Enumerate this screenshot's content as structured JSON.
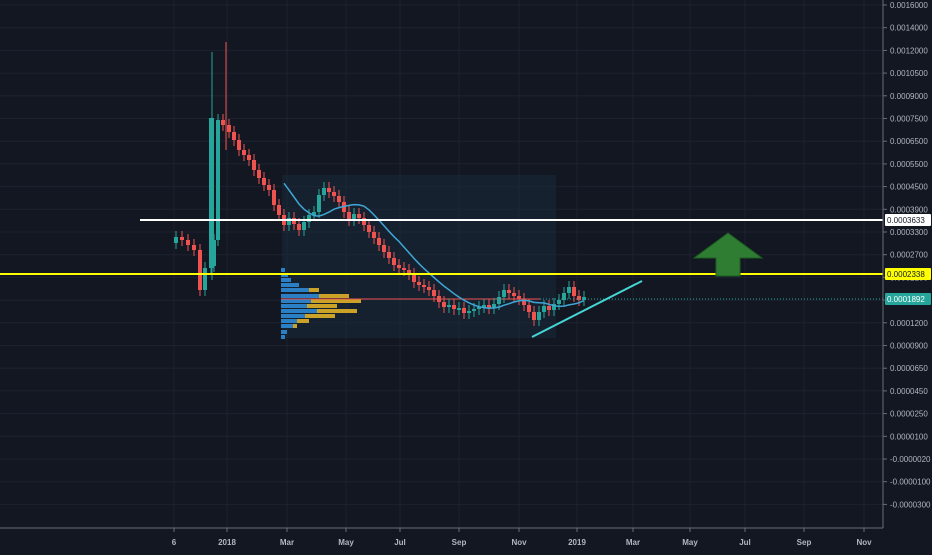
{
  "colors": {
    "background": "#131722",
    "grid": "#1e2230",
    "axis_text": "#b2b5be",
    "axis_line": "#6a6d78",
    "up": "#26a69a",
    "down": "#ef5350",
    "ma": "#3fa7d6",
    "white_line": "#ffffff",
    "yellow_line": "#ffff00",
    "trendline": "#45d6d6",
    "arrow": "#2e7d32",
    "vp_blue": "#2b7fc4",
    "vp_gold": "#c9a227",
    "vp_box": "#1a2a3a"
  },
  "chart_data": {
    "type": "candlestick",
    "title": "",
    "x_tick_labels": [
      "6",
      "2018",
      "Mar",
      "May",
      "Jul",
      "Sep",
      "Nov",
      "2019",
      "Mar",
      "May",
      "Jul",
      "Sep",
      "Nov"
    ],
    "y_tick_labels": [
      "0.0016000",
      "0.0014000",
      "0.0012000",
      "0.0010500",
      "0.0009000",
      "0.0007500",
      "0.0006500",
      "0.0005500",
      "0.0004500",
      "0.0003900",
      "0.0003300",
      "0.0002700",
      "0.0002100",
      "0.0001500",
      "0.0001200",
      "0.0000900",
      "0.0000650",
      "0.0000450",
      "0.0000250",
      "0.0000100",
      "-0.0000020",
      "-0.0000100",
      "-0.0000300"
    ],
    "price_labels": {
      "white_line": "0.0003633",
      "yellow_line": "0.0002338",
      "last_price": "0.0001892"
    },
    "annotations": [
      "white-horizontal-line",
      "yellow-horizontal-line",
      "ascending-trendline",
      "green-up-arrow",
      "volume-profile",
      "moving-average"
    ]
  }
}
